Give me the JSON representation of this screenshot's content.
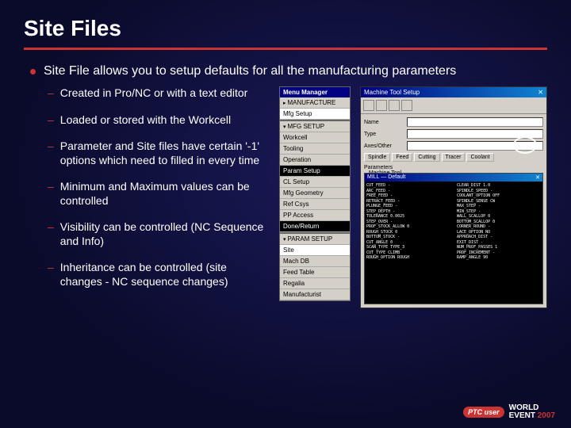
{
  "title": "Site Files",
  "main_bullet": "Site File allows you to setup defaults for all the manufacturing parameters",
  "sub_bullets": [
    "Created in Pro/NC or with a text editor",
    "Loaded or stored with the Workcell",
    "Parameter and Site files have certain '-1' options which need to filled in every time",
    "Minimum and Maximum values can be controlled",
    "Visibility can be controlled (NC Sequence and Info)",
    "Inheritance can be controlled (site changes - NC sequence changes)"
  ],
  "menu1": {
    "header": "Menu Manager",
    "items": [
      "MANUFACTURE",
      "Mfg Setup"
    ]
  },
  "menu2": {
    "items": [
      "MFG SETUP",
      "Workcell",
      "Tooling",
      "Operation",
      "Param Setup",
      "CL Setup",
      "Mfg Geometry",
      "Ref Csys",
      "PP Access",
      "Done/Return"
    ]
  },
  "menu3": {
    "items": [
      "PARAM SETUP",
      "Site",
      "Mach DB",
      "Feed Table",
      "Regalia",
      "Manufacturist"
    ]
  },
  "dialog": {
    "title": "Machine Tool Setup",
    "close": "✕",
    "labels": {
      "name": "Name",
      "type": "Type",
      "axes": "Axes/Other",
      "params": "Parameters"
    },
    "buttons": [
      "Spindle",
      "Feed",
      "Cutting",
      "Tracer",
      "Coolant"
    ],
    "tree_items": [
      "Machine Tool",
      "Parameters (Default)"
    ]
  },
  "param_window": {
    "title": "MILL — Default",
    "close": "✕",
    "lines": [
      "CUT_FEED          -",
      "ARC_FEED          -",
      "FREE_FEED         -",
      "RETRACT_FEED      -",
      "PLUNGE_FEED       -",
      "STEP_DEPTH        -",
      "TOLERANCE         0.0025",
      "STEP_OVER         -",
      "PROF_STOCK_ALLOW  0",
      "ROUGH_STOCK       0",
      "BOTTOM_STOCK      -",
      "CUT_ANGLE         0",
      "SCAN_TYPE         TYPE_3",
      "CUT_TYPE          CLIMB",
      "ROUGH_OPTION      ROUGH",
      "CLEAR_DIST        1.0",
      "SPINDLE_SPEED     -",
      "COOLANT_OPTION    OFF",
      "SPINDLE_SENSE     CW",
      "MAX_STEP          -",
      "MIN_STEP          -",
      "WALL_SCALLOP      0",
      "BOTTOM_SCALLOP    0",
      "CORNER_ROUND      -",
      "LACE_OPTION       NO",
      "APPROACH_DIST     -",
      "EXIT_DIST         -",
      "NUM_PROF_PASSES   1",
      "PROF_INCREMENT    -",
      "RAMP_ANGLE        90"
    ]
  },
  "footer": {
    "badge": "PTC user",
    "line1": "WORLD",
    "line2": "EVENT",
    "year": "2007"
  },
  "colors": {
    "accent": "#cc3333",
    "bg_dark": "#0a0a3a",
    "menu_bg": "#d4d0c8",
    "titlebar": "#000080"
  }
}
